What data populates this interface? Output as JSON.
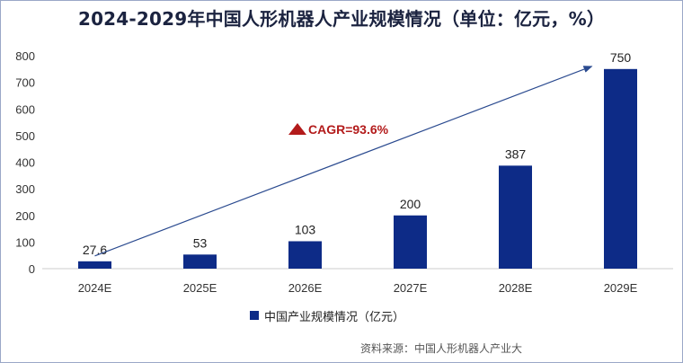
{
  "chart_data": {
    "type": "bar",
    "title": "2024-2029年中国人形机器人产业规模情况（单位：亿元，%）",
    "categories": [
      "2024E",
      "2025E",
      "2026E",
      "2027E",
      "2028E",
      "2029E"
    ],
    "series": [
      {
        "name": "中国产业规模情况（亿元）",
        "values": [
          27.6,
          53,
          103,
          200,
          387,
          750
        ],
        "labels": [
          "27.6",
          "53",
          "103",
          "200",
          "387",
          "750"
        ]
      }
    ],
    "ylim": [
      0,
      800
    ],
    "yticks": [
      0,
      100,
      200,
      300,
      400,
      500,
      600,
      700,
      800
    ],
    "annotation": "CAGR=93.6%",
    "legend_position": "bottom",
    "grid": false,
    "source": "资料来源：中国人形机器人产业大"
  },
  "colors": {
    "bar": "#0d2b87",
    "arrow": "#2a4a8f",
    "cagr": "#b31b1b"
  }
}
